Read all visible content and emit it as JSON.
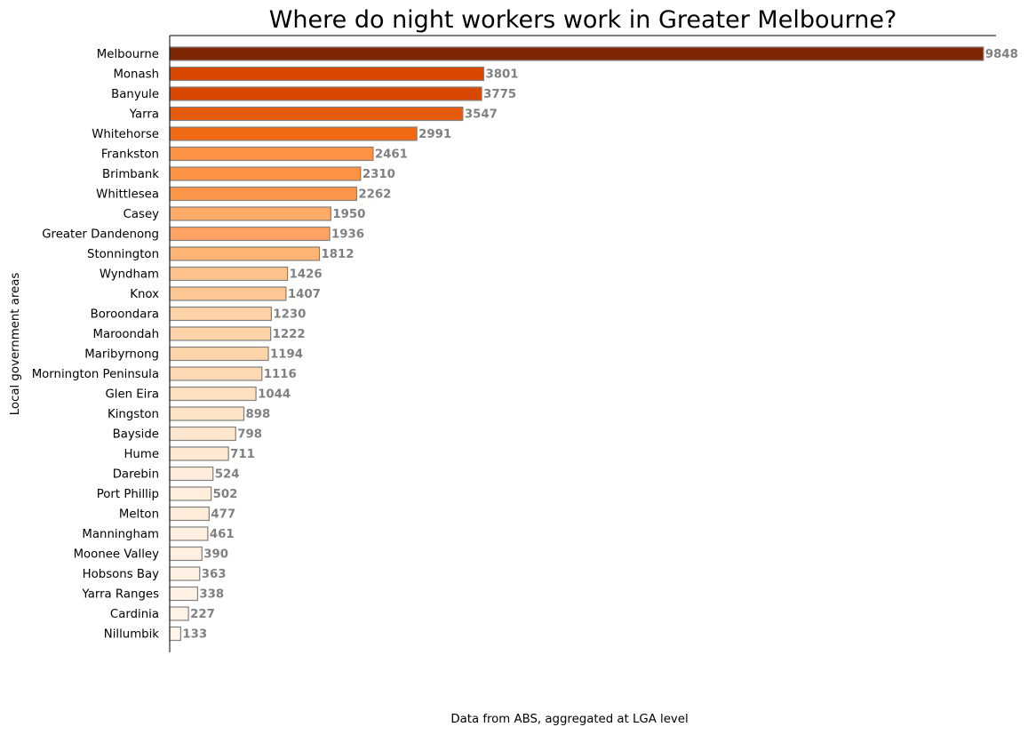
{
  "chart_data": {
    "type": "bar",
    "orientation": "horizontal",
    "title": "Where do night workers work in Greater Melbourne?",
    "xlabel": "",
    "ylabel": "Local government areas",
    "caption": "Data from ABS, aggregated at LGA level",
    "xlim": [
      0,
      10000
    ],
    "grid": false,
    "colormap": "Oranges",
    "bar_edge_color": "#808080",
    "value_label_color": "#808080",
    "categories": [
      "Melbourne",
      "Monash",
      "Banyule",
      "Yarra",
      "Whitehorse",
      "Frankston",
      "Brimbank",
      "Whittlesea",
      "Casey",
      "Greater Dandenong",
      "Stonnington",
      "Wyndham",
      "Knox",
      "Boroondara",
      "Maroondah",
      "Maribyrnong",
      "Mornington Peninsula",
      "Glen Eira",
      "Kingston",
      "Bayside",
      "Hume",
      "Darebin",
      "Port Phillip",
      "Melton",
      "Manningham",
      "Moonee Valley",
      "Hobsons Bay",
      "Yarra Ranges",
      "Cardinia",
      "Nillumbik"
    ],
    "values": [
      9848,
      3801,
      3775,
      3547,
      2991,
      2461,
      2310,
      2262,
      1950,
      1936,
      1812,
      1426,
      1407,
      1230,
      1222,
      1194,
      1116,
      1044,
      898,
      798,
      711,
      524,
      502,
      477,
      461,
      390,
      363,
      338,
      227,
      133
    ],
    "colors": [
      "#7f2704",
      "#d94801",
      "#d94801",
      "#e65a0b",
      "#f16913",
      "#fd9244",
      "#fd9344",
      "#fd9649",
      "#fdab66",
      "#fda262",
      "#fdb474",
      "#fdc28c",
      "#fdc794",
      "#fdd2a6",
      "#fdd3a7",
      "#fdd4aa",
      "#fdd8b2",
      "#fee0c1",
      "#fee4c6",
      "#fee6ce",
      "#fee8d2",
      "#feeddc",
      "#feeedd",
      "#feeddb",
      "#ffefe0",
      "#fff0e1",
      "#fff1e3",
      "#fff1e4",
      "#fff3e8",
      "#fff5eb"
    ]
  }
}
